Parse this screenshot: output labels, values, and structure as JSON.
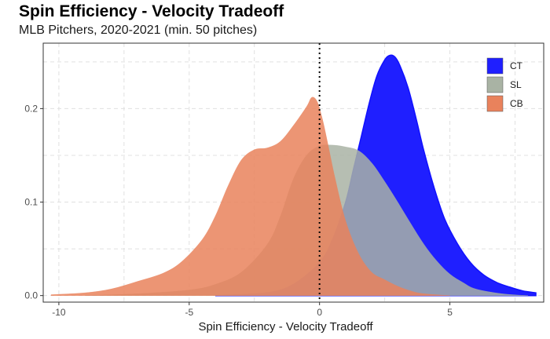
{
  "header": {
    "title": "Spin Efficiency - Velocity Tradeoff",
    "subtitle": "MLB Pitchers, 2020-2021 (min. 50 pitches)"
  },
  "chart_data": {
    "type": "area",
    "subtype": "density",
    "title": "Spin Efficiency - Velocity Tradeoff",
    "subtitle": "MLB Pitchers, 2020-2021 (min. 50 pitches)",
    "xlabel": "Spin Efficiency - Velocity Tradeoff",
    "ylabel": "",
    "xlim": [
      -10.6,
      8.6
    ],
    "ylim": [
      -0.007,
      0.27
    ],
    "x_ticks": [
      -10,
      -5,
      0,
      5
    ],
    "x_tick_labels": [
      "-10",
      "-5",
      "0",
      "5"
    ],
    "y_ticks": [
      0.0,
      0.1,
      0.2
    ],
    "y_tick_labels": [
      "0.0",
      "0.1",
      "0.2"
    ],
    "grid": true,
    "reference_line": {
      "x": 0,
      "style": "dotted"
    },
    "legend": {
      "position": "top-right",
      "entries": [
        "CT",
        "SL",
        "CB"
      ]
    },
    "series": [
      {
        "name": "CT",
        "color": "#1f1fff",
        "points": [
          [
            -4,
            0.0
          ],
          [
            -2,
            0.003
          ],
          [
            -1,
            0.012
          ],
          [
            0,
            0.035
          ],
          [
            0.5,
            0.06
          ],
          [
            1,
            0.1
          ],
          [
            1.3,
            0.135
          ],
          [
            1.6,
            0.17
          ],
          [
            1.9,
            0.205
          ],
          [
            2.2,
            0.235
          ],
          [
            2.5,
            0.252
          ],
          [
            2.7,
            0.257
          ],
          [
            2.9,
            0.255
          ],
          [
            3.1,
            0.245
          ],
          [
            3.4,
            0.222
          ],
          [
            3.7,
            0.19
          ],
          [
            4,
            0.155
          ],
          [
            4.4,
            0.115
          ],
          [
            4.8,
            0.082
          ],
          [
            5.3,
            0.055
          ],
          [
            5.8,
            0.035
          ],
          [
            6.3,
            0.022
          ],
          [
            6.8,
            0.014
          ],
          [
            7.3,
            0.009
          ],
          [
            7.8,
            0.005
          ],
          [
            8.3,
            0.003
          ]
        ]
      },
      {
        "name": "SL",
        "color": "#a9b3a4",
        "points": [
          [
            -9,
            0.0
          ],
          [
            -7,
            0.002
          ],
          [
            -5,
            0.006
          ],
          [
            -4,
            0.012
          ],
          [
            -3,
            0.025
          ],
          [
            -2,
            0.055
          ],
          [
            -1.5,
            0.085
          ],
          [
            -1,
            0.125
          ],
          [
            -0.5,
            0.15
          ],
          [
            0,
            0.16
          ],
          [
            0.5,
            0.161
          ],
          [
            1,
            0.159
          ],
          [
            1.5,
            0.155
          ],
          [
            2,
            0.142
          ],
          [
            2.5,
            0.122
          ],
          [
            3,
            0.1
          ],
          [
            3.5,
            0.077
          ],
          [
            4,
            0.055
          ],
          [
            4.5,
            0.037
          ],
          [
            5,
            0.023
          ],
          [
            5.5,
            0.014
          ],
          [
            6,
            0.007
          ],
          [
            7,
            0.002
          ],
          [
            8,
            0.0
          ]
        ]
      },
      {
        "name": "CB",
        "color": "#e9825c",
        "points": [
          [
            -10.3,
            0.001
          ],
          [
            -9,
            0.003
          ],
          [
            -8,
            0.007
          ],
          [
            -7,
            0.015
          ],
          [
            -6,
            0.024
          ],
          [
            -5.3,
            0.036
          ],
          [
            -4.5,
            0.06
          ],
          [
            -4,
            0.085
          ],
          [
            -3.5,
            0.118
          ],
          [
            -3,
            0.145
          ],
          [
            -2.5,
            0.156
          ],
          [
            -2,
            0.158
          ],
          [
            -1.5,
            0.165
          ],
          [
            -1,
            0.182
          ],
          [
            -0.5,
            0.202
          ],
          [
            -0.3,
            0.212
          ],
          [
            -0.1,
            0.208
          ],
          [
            0.1,
            0.19
          ],
          [
            0.3,
            0.165
          ],
          [
            0.6,
            0.125
          ],
          [
            1,
            0.08
          ],
          [
            1.5,
            0.045
          ],
          [
            2,
            0.025
          ],
          [
            2.5,
            0.017
          ],
          [
            3,
            0.01
          ],
          [
            3.5,
            0.005
          ],
          [
            4,
            0.002
          ],
          [
            5,
            0.0
          ]
        ]
      }
    ]
  }
}
